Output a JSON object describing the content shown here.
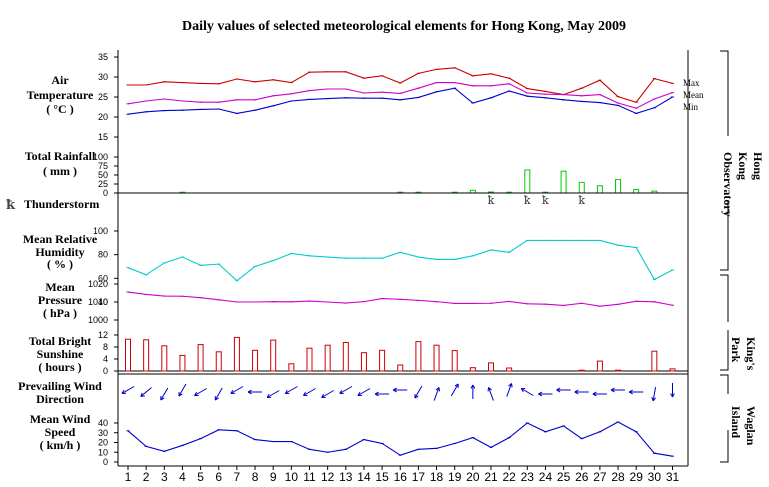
{
  "chart_data": {
    "type": "line",
    "title": "Daily values of selected meteorological elements for Hong Kong, May 2009",
    "x": [
      1,
      2,
      3,
      4,
      5,
      6,
      7,
      8,
      9,
      10,
      11,
      12,
      13,
      14,
      15,
      16,
      17,
      18,
      19,
      20,
      21,
      22,
      23,
      24,
      25,
      26,
      27,
      28,
      29,
      30,
      31
    ],
    "x_tick_labels": [
      "1",
      "2",
      "3",
      "4",
      "5",
      "6",
      "7",
      "8",
      "9",
      "10",
      "11",
      "12",
      "13",
      "14",
      "15",
      "16",
      "17",
      "18",
      "19",
      "20",
      "21",
      "22",
      "23",
      "24",
      "25",
      "26",
      "27",
      "28",
      "29",
      "30",
      "31"
    ],
    "panels": [
      {
        "key": "temp",
        "label": [
          "Air",
          "Temperature",
          "( °C )"
        ],
        "type": "line",
        "ylim": [
          15,
          35
        ],
        "ticks": [
          15,
          20,
          25,
          30,
          35
        ],
        "tick_labels": [
          "15",
          "20",
          "25",
          "30",
          "35"
        ],
        "series": [
          {
            "name": "Max",
            "color": "#cc0000",
            "values": [
              28.0,
              28.0,
              28.8,
              28.6,
              28.4,
              28.3,
              29.5,
              28.8,
              29.3,
              28.6,
              31.2,
              31.3,
              31.3,
              29.7,
              30.3,
              28.5,
              30.9,
              31.9,
              32.3,
              30.3,
              30.8,
              29.7,
              27.1,
              26.4,
              25.6,
              27.2,
              29.2,
              25.1,
              23.7,
              29.6,
              28.4
            ]
          },
          {
            "name": "Mean",
            "color": "#cc00cc",
            "values": [
              23.3,
              24.0,
              24.5,
              24.0,
              23.7,
              23.7,
              24.3,
              24.3,
              25.3,
              25.8,
              26.6,
              27.0,
              27.0,
              26.0,
              26.2,
              25.9,
              27.2,
              28.6,
              28.6,
              27.8,
              27.8,
              28.3,
              26.0,
              25.7,
              25.6,
              25.3,
              25.6,
              23.5,
              22.2,
              24.5,
              26.1
            ]
          },
          {
            "name": "Min",
            "color": "#0000cc",
            "values": [
              20.7,
              21.3,
              21.6,
              21.7,
              21.9,
              22.0,
              20.9,
              21.7,
              22.8,
              24.0,
              24.4,
              24.6,
              24.8,
              24.7,
              24.7,
              24.3,
              24.9,
              26.3,
              27.2,
              23.5,
              24.8,
              26.5,
              25.2,
              24.8,
              24.3,
              23.9,
              23.6,
              22.9,
              20.9,
              22.3,
              25.0
            ]
          }
        ]
      },
      {
        "key": "rain",
        "label": [
          "Total Rainfall",
          "( mm )"
        ],
        "type": "bar",
        "color": "#00cc00",
        "ylim": [
          0,
          100
        ],
        "ticks": [
          0,
          25,
          50,
          75,
          100
        ],
        "tick_labels": [
          "0",
          "25",
          "50",
          "75",
          "100"
        ],
        "values": [
          0,
          0,
          0,
          0.3,
          0,
          0,
          0,
          0,
          0,
          0,
          0,
          0,
          0,
          0,
          0,
          0.2,
          0.4,
          0,
          0.3,
          7.5,
          2.8,
          1.1,
          64,
          2.3,
          60.5,
          29.4,
          20.1,
          37.3,
          9.9,
          5.2,
          0
        ]
      },
      {
        "key": "thunder",
        "label": [
          "Thunderstorm"
        ],
        "type": "symbol",
        "days": [
          21,
          23,
          24,
          26
        ]
      },
      {
        "key": "rh",
        "label": [
          "Mean Relative",
          "Humidity",
          "( % )"
        ],
        "type": "line",
        "color": "#00cccc",
        "ylim": [
          40,
          100
        ],
        "ticks": [
          40,
          60,
          80,
          100
        ],
        "tick_labels": [
          "40",
          "60",
          "80",
          "100"
        ],
        "values": [
          69,
          63,
          73,
          78,
          71,
          72,
          58,
          70,
          75,
          81,
          79,
          78,
          77,
          77,
          77,
          82,
          78,
          76,
          76,
          79,
          84,
          82,
          92,
          92,
          92,
          92,
          92,
          88,
          86,
          59,
          67
        ]
      },
      {
        "key": "pres",
        "label": [
          "Mean",
          "Pressure",
          "( hPa )"
        ],
        "type": "line",
        "color": "#cc00cc",
        "ylim": [
          1000,
          1020
        ],
        "ticks": [
          1000,
          1010,
          1020
        ],
        "tick_labels": [
          "1000",
          "1010",
          "1020"
        ],
        "values": [
          1015.5,
          1014.2,
          1013.3,
          1013.2,
          1012.4,
          1011.2,
          1010.0,
          1010.0,
          1010.2,
          1010.1,
          1010.5,
          1010.0,
          1009.4,
          1010.2,
          1011.9,
          1011.5,
          1010.9,
          1010.2,
          1009.2,
          1009.2,
          1009.3,
          1010.3,
          1009.0,
          1008.8,
          1008.1,
          1009.3,
          1007.7,
          1008.7,
          1010.4,
          1010.1,
          1008.2
        ]
      },
      {
        "key": "sun",
        "label": [
          "Total Bright",
          "Sunshine",
          "( hours )"
        ],
        "type": "bar",
        "color": "#cc0000",
        "ylim": [
          0,
          12
        ],
        "ticks": [
          0,
          4,
          8,
          12
        ],
        "tick_labels": [
          "0",
          "4",
          "8",
          "12"
        ],
        "values": [
          10.6,
          10.4,
          8.4,
          5.2,
          8.8,
          6.4,
          11.2,
          6.9,
          10.3,
          2.4,
          7.6,
          8.6,
          9.5,
          6.1,
          6.9,
          2.0,
          9.8,
          8.6,
          6.8,
          1.1,
          2.7,
          1.0,
          0,
          0,
          0,
          0.1,
          3.3,
          0.1,
          0,
          6.6,
          0.7
        ]
      },
      {
        "key": "wdir",
        "label": [
          "Prevailing Wind",
          "Direction"
        ],
        "type": "arrow",
        "color": "#0000cc",
        "unit": "degrees, wind-from direction",
        "values": [
          60,
          50,
          30,
          30,
          60,
          30,
          60,
          90,
          60,
          60,
          60,
          60,
          60,
          60,
          90,
          90,
          30,
          200,
          210,
          180,
          160,
          200,
          120,
          90,
          90,
          90,
          90,
          90,
          90,
          10,
          0
        ]
      },
      {
        "key": "wspd",
        "label": [
          "Mean Wind",
          "Speed",
          "( km/h )"
        ],
        "type": "line",
        "color": "#0000cc",
        "ylim": [
          0,
          40
        ],
        "ticks": [
          0,
          10,
          20,
          30,
          40
        ],
        "tick_labels": [
          "0",
          "10",
          "20",
          "30",
          "40"
        ],
        "values": [
          32,
          16,
          11,
          17,
          24,
          33,
          32,
          23,
          21,
          21,
          13,
          10,
          13,
          23,
          19,
          7,
          13,
          14,
          19,
          25,
          15,
          25,
          40,
          31,
          37,
          24,
          31,
          41,
          31,
          9,
          6
        ]
      }
    ],
    "stations": [
      {
        "lines": [
          "Hong",
          "Kong",
          "Observatory"
        ]
      },
      {
        "lines": [
          "King's",
          "Park"
        ]
      },
      {
        "lines": [
          "Waglan",
          "Island"
        ]
      }
    ],
    "thunder_symbol": "ꝁ"
  }
}
